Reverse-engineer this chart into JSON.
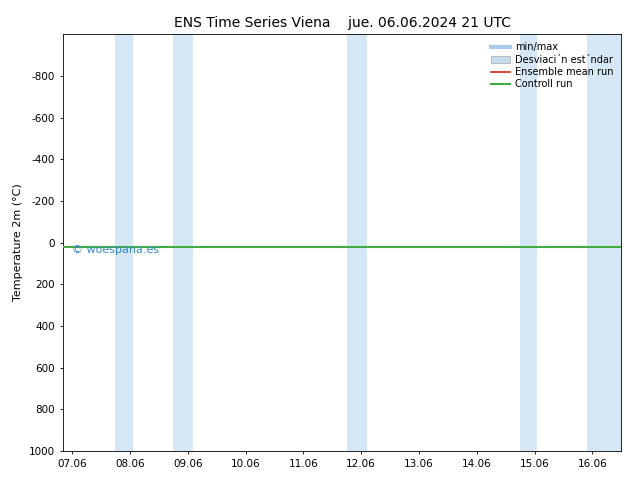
{
  "title_left": "ENS Time Series Viena",
  "title_right": "jue. 06.06.2024 21 UTC",
  "ylabel": "Temperature 2m (°C)",
  "ylim_bottom": -1000,
  "ylim_top": 1000,
  "yticks": [
    -800,
    -600,
    -400,
    -200,
    0,
    200,
    400,
    600,
    800,
    1000
  ],
  "xtick_labels": [
    "07.06",
    "08.06",
    "09.06",
    "10.06",
    "11.06",
    "12.06",
    "13.06",
    "14.06",
    "15.06",
    "16.06"
  ],
  "xtick_positions": [
    0,
    1,
    2,
    3,
    4,
    5,
    6,
    7,
    8,
    9
  ],
  "xlim": [
    -0.15,
    9.5
  ],
  "blue_bands": [
    [
      0.75,
      1.05
    ],
    [
      1.75,
      2.1
    ],
    [
      4.75,
      5.1
    ],
    [
      7.75,
      8.05
    ],
    [
      8.9,
      9.5
    ]
  ],
  "band_color": "#d6e8f5",
  "green_line_y": 20,
  "red_line_y": 20,
  "background_color": "#ffffff",
  "legend_entries": [
    {
      "label": "min/max",
      "color": "#aacce8",
      "lw": 3
    },
    {
      "label": "Desviaci´n est´ndar",
      "color": "#c8dced",
      "lw": 5
    },
    {
      "label": "Ensemble mean run",
      "color": "#dd2222",
      "lw": 1.2
    },
    {
      "label": "Controll run",
      "color": "#44aa44",
      "lw": 1.5
    }
  ],
  "watermark": "© woespana.es",
  "watermark_color": "#3388cc",
  "title_fontsize": 10,
  "axis_label_fontsize": 8,
  "tick_fontsize": 7.5,
  "legend_fontsize": 7
}
